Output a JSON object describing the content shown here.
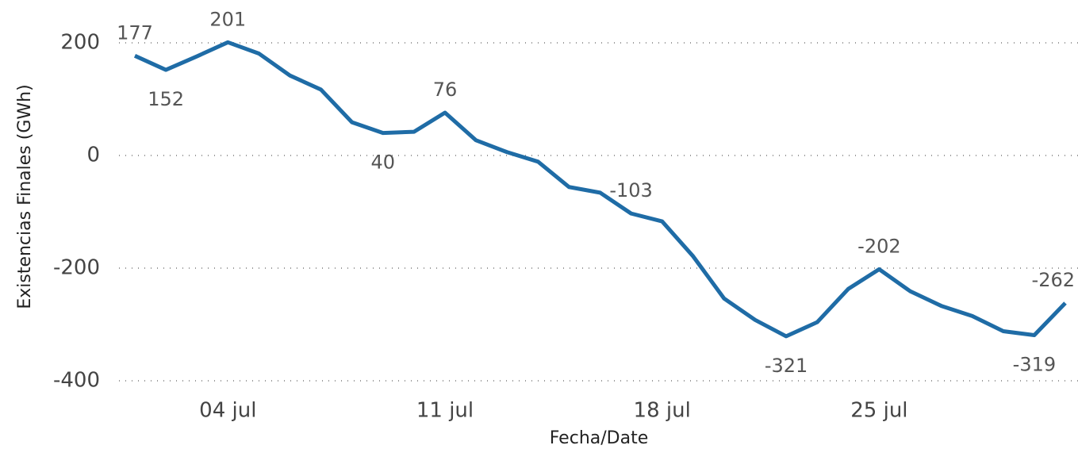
{
  "chart_data": {
    "type": "line",
    "xlabel": "Fecha/Date",
    "ylabel": "Existencias Finales (GWh)",
    "categories": [
      null,
      null,
      null,
      "04 jul",
      null,
      null,
      null,
      null,
      null,
      null,
      "11 jul",
      null,
      null,
      null,
      null,
      null,
      null,
      "18 jul",
      null,
      null,
      null,
      null,
      null,
      null,
      "25 jul",
      null,
      null,
      null,
      null,
      null,
      null
    ],
    "series": [
      {
        "name": null,
        "color": "#1f6ca6",
        "values": [
          177,
          152,
          176,
          201,
          181,
          142,
          117,
          59,
          40,
          42,
          76,
          27,
          6,
          -11,
          -56,
          -66,
          -103,
          -117,
          -179,
          -254,
          -292,
          -321,
          -296,
          -237,
          -202,
          -241,
          -267,
          -285,
          -312,
          -319,
          -262
        ],
        "value_labels": [
          "177",
          "152",
          null,
          "201",
          null,
          null,
          null,
          null,
          "40",
          null,
          "76",
          null,
          null,
          null,
          null,
          null,
          "-103",
          null,
          null,
          null,
          null,
          "-321",
          null,
          null,
          "-202",
          null,
          null,
          null,
          null,
          "-319",
          "-262"
        ]
      }
    ],
    "ylim": [
      -400,
      200
    ],
    "yticks": [
      -400,
      -200,
      0,
      200
    ],
    "grid": true
  }
}
